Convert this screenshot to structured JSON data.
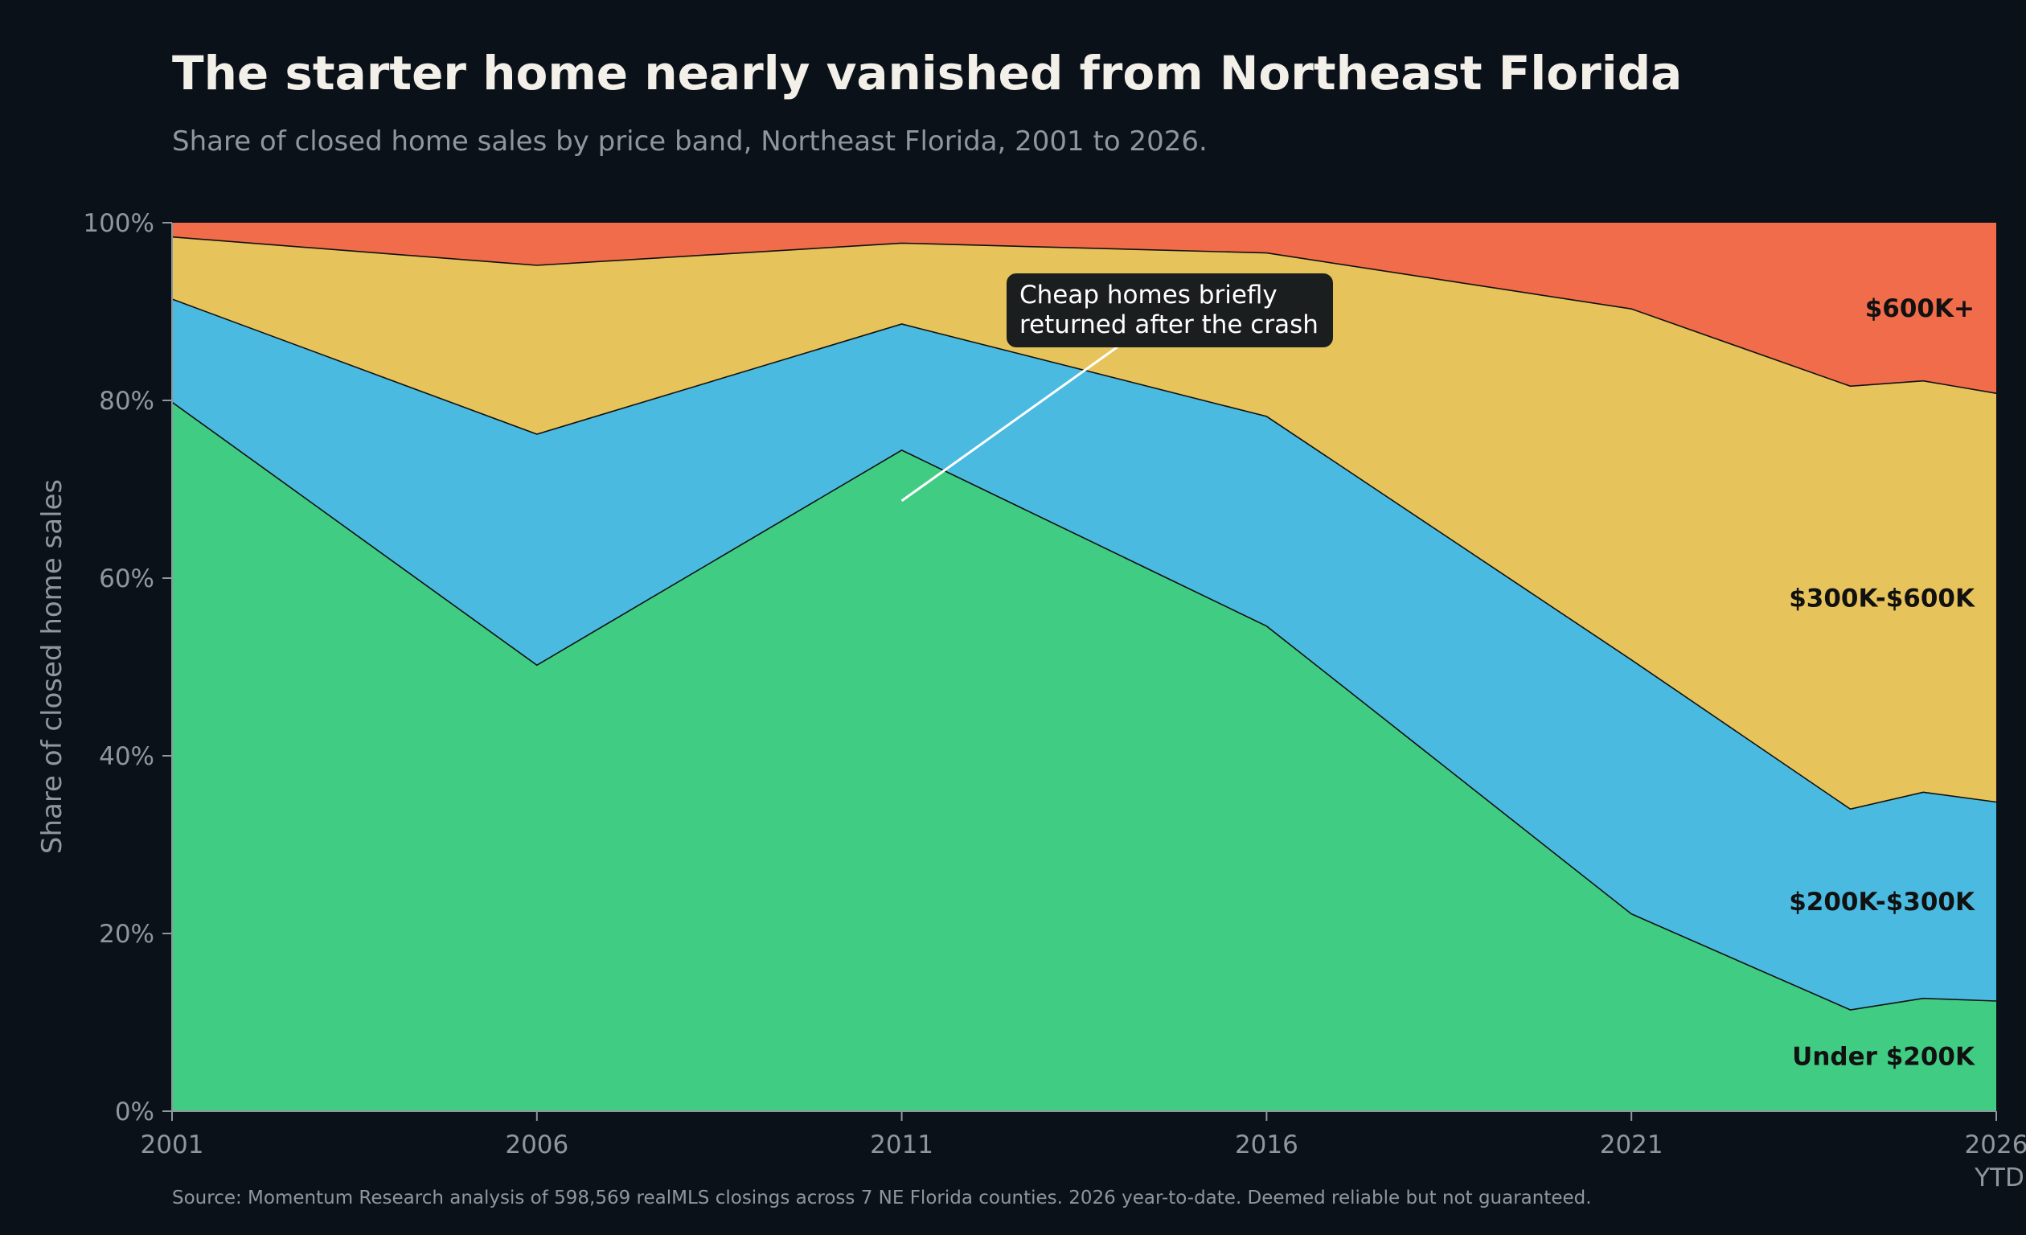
{
  "colors": {
    "background": "#0b1118",
    "title": "#f3efe9",
    "subtitle": "#8f969d",
    "axis_text": "#8f969d",
    "source_text": "#8f969d",
    "band_label": "#111111",
    "annotation_bg": "#1b1e1e",
    "annotation_text": "#ffffff",
    "annotation_line": "#ffffff",
    "band_edge": "#111111"
  },
  "chart_data": {
    "type": "area",
    "stacked": true,
    "normalized": true,
    "title": "The starter home nearly vanished from Northeast Florida",
    "subtitle": "Share of closed home sales by price band, Northeast Florida, 2001 to 2026.",
    "xlabel": "",
    "ylabel": "Share of closed home sales",
    "x": [
      2001,
      2006,
      2011,
      2016,
      2021,
      2024,
      2025,
      2026
    ],
    "xlim": [
      2001,
      2026
    ],
    "ylim": [
      0,
      100
    ],
    "x_ticks": [
      {
        "value": 2001,
        "label": "2001"
      },
      {
        "value": 2006,
        "label": "2006"
      },
      {
        "value": 2011,
        "label": "2011"
      },
      {
        "value": 2016,
        "label": "2016"
      },
      {
        "value": 2021,
        "label": "2021"
      },
      {
        "value": 2026,
        "label": "2026",
        "sublabel": "YTD"
      }
    ],
    "y_ticks": [
      {
        "value": 0,
        "label": "0%"
      },
      {
        "value": 20,
        "label": "20%"
      },
      {
        "value": 40,
        "label": "40%"
      },
      {
        "value": 60,
        "label": "60%"
      },
      {
        "value": 80,
        "label": "80%"
      },
      {
        "value": 100,
        "label": "100%"
      }
    ],
    "grid": false,
    "legend": "inline labels at right edge",
    "series": [
      {
        "name": "Under $200K",
        "color": "#41cc83",
        "values": [
          79.8,
          50.2,
          74.4,
          54.6,
          22.2,
          11.4,
          12.7,
          12.4
        ]
      },
      {
        "name": "$200K-$300K",
        "color": "#4abae0",
        "values": [
          11.6,
          26.0,
          14.2,
          23.6,
          28.6,
          22.6,
          23.2,
          22.4
        ]
      },
      {
        "name": "$300K-$600K",
        "color": "#e6c45b",
        "values": [
          7.0,
          19.0,
          9.1,
          18.4,
          39.5,
          47.6,
          46.3,
          46.0
        ]
      },
      {
        "name": "$600K+",
        "color": "#f06c4b",
        "values": [
          1.6,
          4.8,
          2.3,
          3.4,
          9.7,
          18.4,
          17.8,
          19.2
        ]
      }
    ],
    "annotations": [
      {
        "text_lines": [
          "Cheap homes briefly",
          "returned after the crash"
        ],
        "point_x": 2011,
        "point_y": 68.7
      }
    ],
    "source": "Source: Momentum Research analysis of 598,569 realMLS closings across 7 NE Florida counties. 2026 year-to-date. Deemed reliable but not guaranteed."
  }
}
